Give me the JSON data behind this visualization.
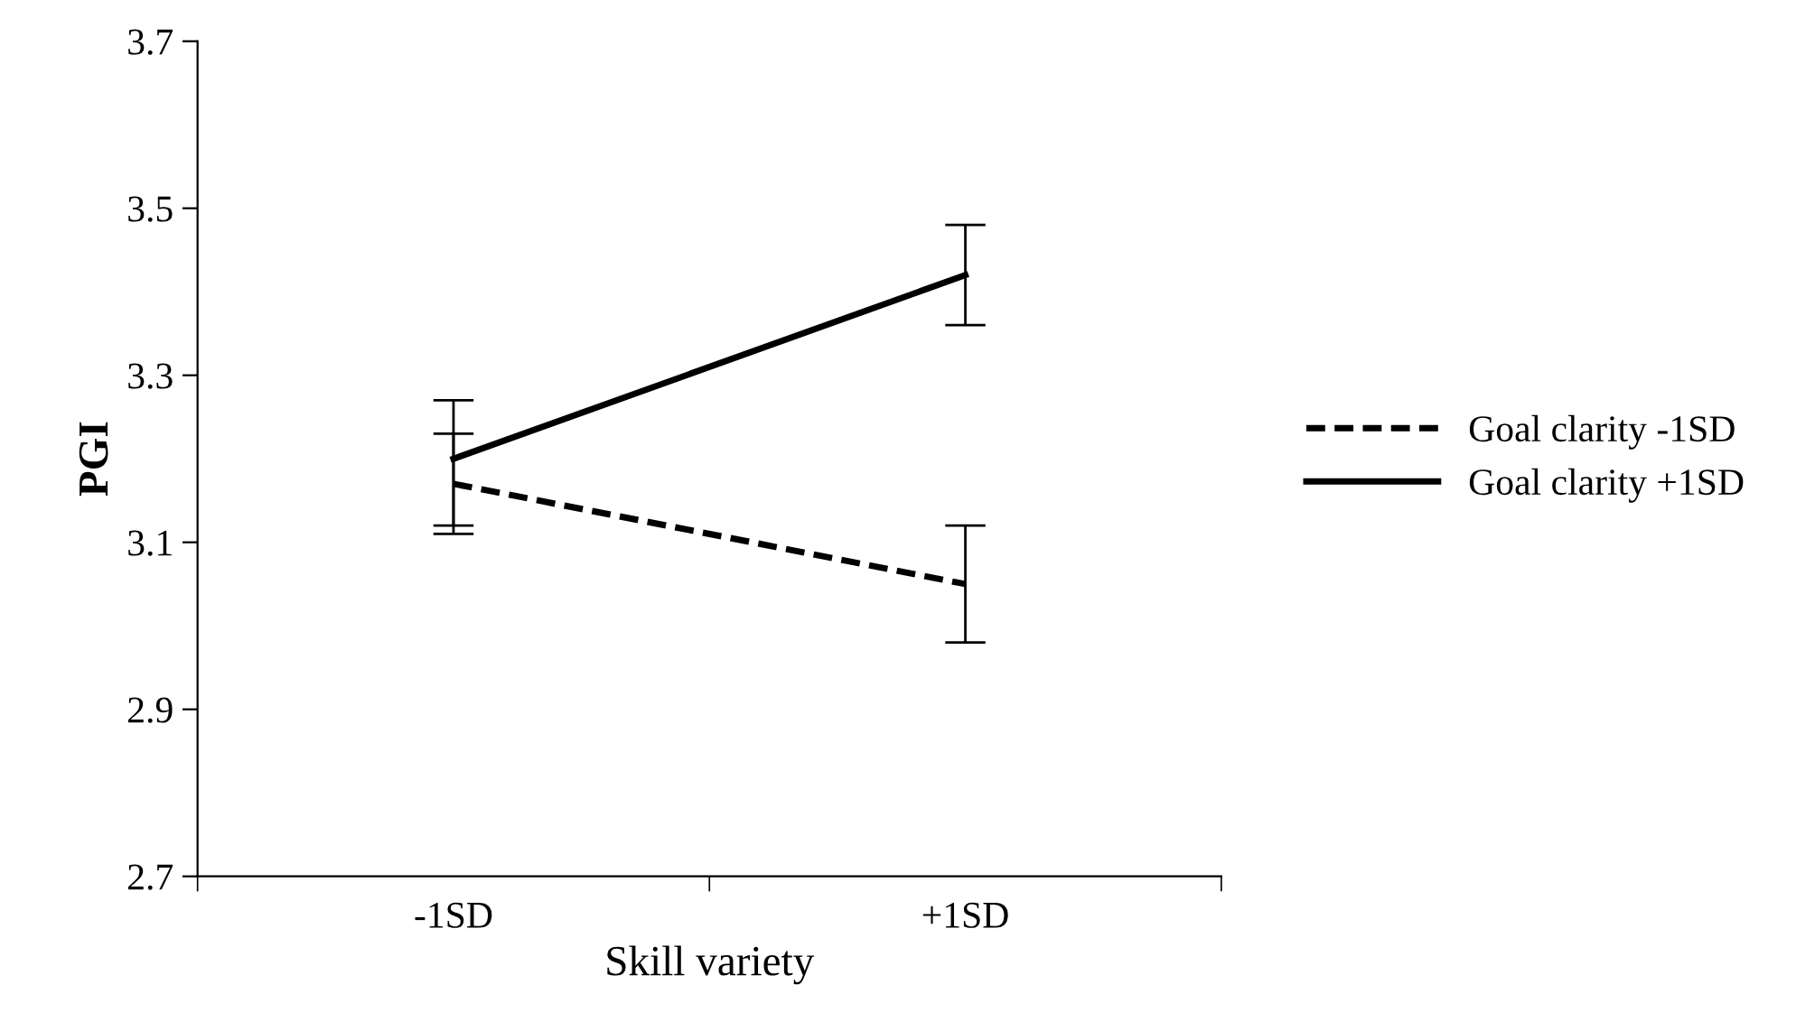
{
  "chart_data": {
    "type": "line",
    "xlabel": "Skill variety",
    "ylabel": "PGI",
    "categories": [
      "-1SD",
      "+1SD"
    ],
    "series": [
      {
        "name": "Goal clarity -1SD",
        "color": "#000000",
        "line_style": "dashed",
        "values": [
          3.17,
          3.05
        ],
        "errors": [
          [
            3.11,
            3.23
          ],
          [
            2.98,
            3.12
          ]
        ]
      },
      {
        "name": "Goal clarity +1SD",
        "color": "#000000",
        "line_style": "solid",
        "values": [
          3.2,
          3.42
        ],
        "errors": [
          [
            3.12,
            3.27
          ],
          [
            3.36,
            3.48
          ]
        ]
      }
    ],
    "ylim": [
      2.7,
      3.7
    ],
    "yticks": [
      {
        "value": 2.7,
        "label": "2.7"
      },
      {
        "value": 2.9,
        "label": "2.9"
      },
      {
        "value": 3.1,
        "label": "3.1"
      },
      {
        "value": 3.3,
        "label": "3.3"
      },
      {
        "value": 3.5,
        "label": "3.5"
      },
      {
        "value": 3.7,
        "label": "3.7"
      }
    ],
    "grid": false,
    "legend": "right",
    "marker": "none"
  }
}
